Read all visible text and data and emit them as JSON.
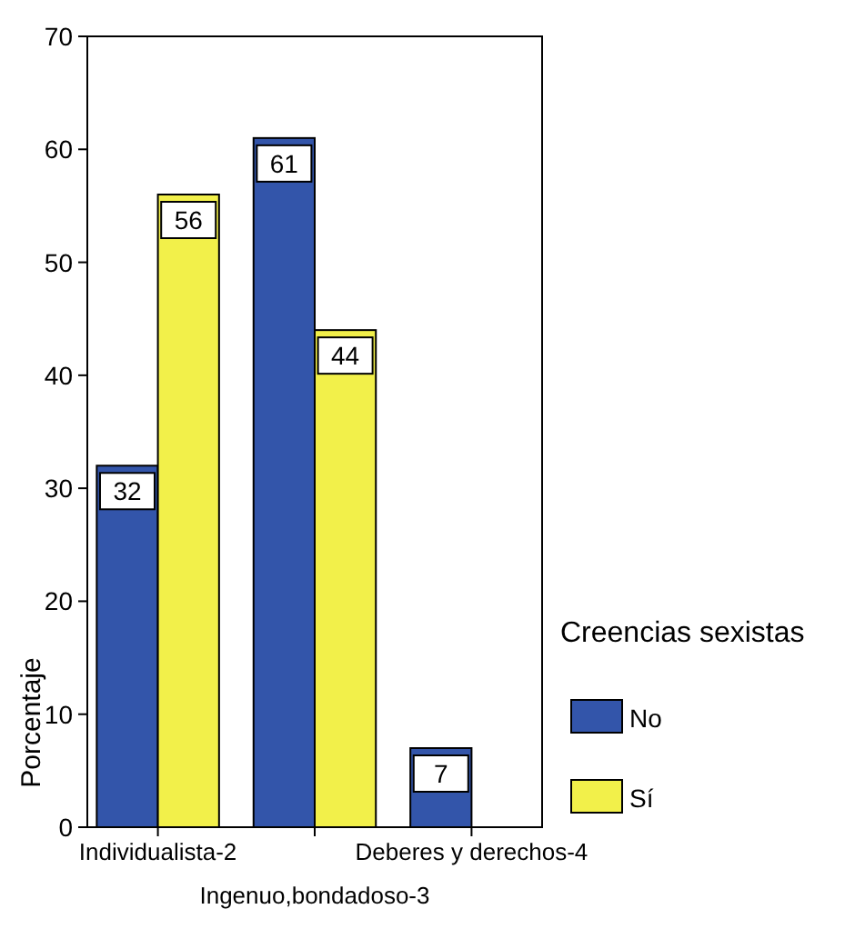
{
  "chart_data": {
    "type": "bar",
    "ylabel": "Porcentaje",
    "legend_title": "Creencias sexistas",
    "legend": "right",
    "categories": [
      "Individualista-2",
      "Ingenuo,bondadoso-3",
      "Deberes y derechos-4"
    ],
    "series": [
      {
        "name": "No",
        "color": "#3355aa",
        "values": [
          32,
          61,
          7
        ]
      },
      {
        "name": "Sí",
        "color": "#f2f04a",
        "values": [
          56,
          44,
          null
        ]
      }
    ],
    "ylim": [
      0,
      70
    ],
    "yticks": [
      0,
      10,
      20,
      30,
      40,
      50,
      60,
      70
    ],
    "data_labels": true
  }
}
